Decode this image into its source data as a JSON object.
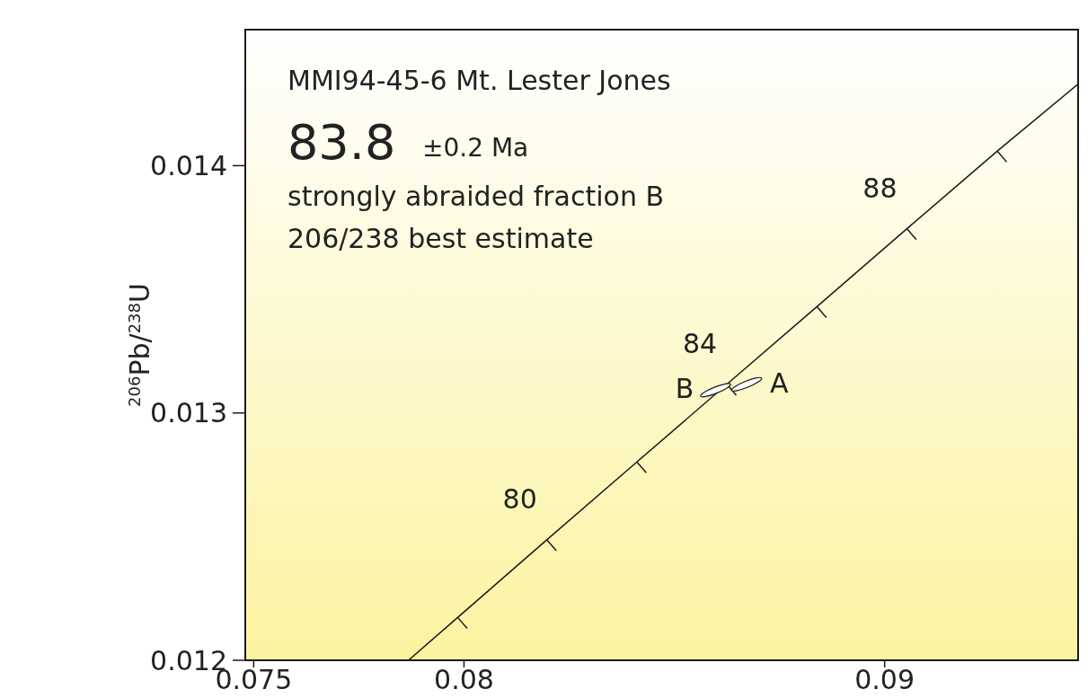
{
  "chart_data": {
    "type": "line",
    "title": "MMI94-45-6 Mt. Lester Jones",
    "ylabel": "$^{206}$Pb/$^{238}$U",
    "annotations": [
      "83.8",
      "±0.2 Ma",
      "strongly abraided fraction B",
      "206/238 best estimate",
      {
        "text": "80",
        "x": 0.08197,
        "y": 0.012487
      },
      {
        "text": "84",
        "x": 0.08625,
        "y": 0.013116
      },
      {
        "text": "88",
        "x": 0.09053,
        "y": 0.013745
      }
    ],
    "xlim": [
      0.0748,
      0.0946
    ],
    "xticks": [
      0.075,
      0.08,
      0.09
    ],
    "ylim": [
      0.012,
      0.01455
    ],
    "yticks": [
      0.012,
      0.013,
      0.014
    ],
    "grid": false,
    "series": [
      {
        "color": "#1a1a1a",
        "marker": "none",
        "x": [
          0.07868,
          0.07985,
          0.08197,
          0.08411,
          0.08625,
          0.08839,
          0.09053,
          0.09268,
          0.0946
        ],
        "values": [
          0.012,
          0.012173,
          0.012487,
          0.012802,
          0.013116,
          0.01343,
          0.013745,
          0.014059,
          0.01433
        ]
      },
      {
        "type": "scatter",
        "name": "B",
        "color": "#ffffff",
        "x": [
          0.08598
        ],
        "values": [
          0.013092
        ]
      },
      {
        "type": "scatter",
        "name": "A",
        "color": "#ffffff",
        "x": [
          0.08672
        ],
        "values": [
          0.013116
        ]
      }
    ]
  }
}
